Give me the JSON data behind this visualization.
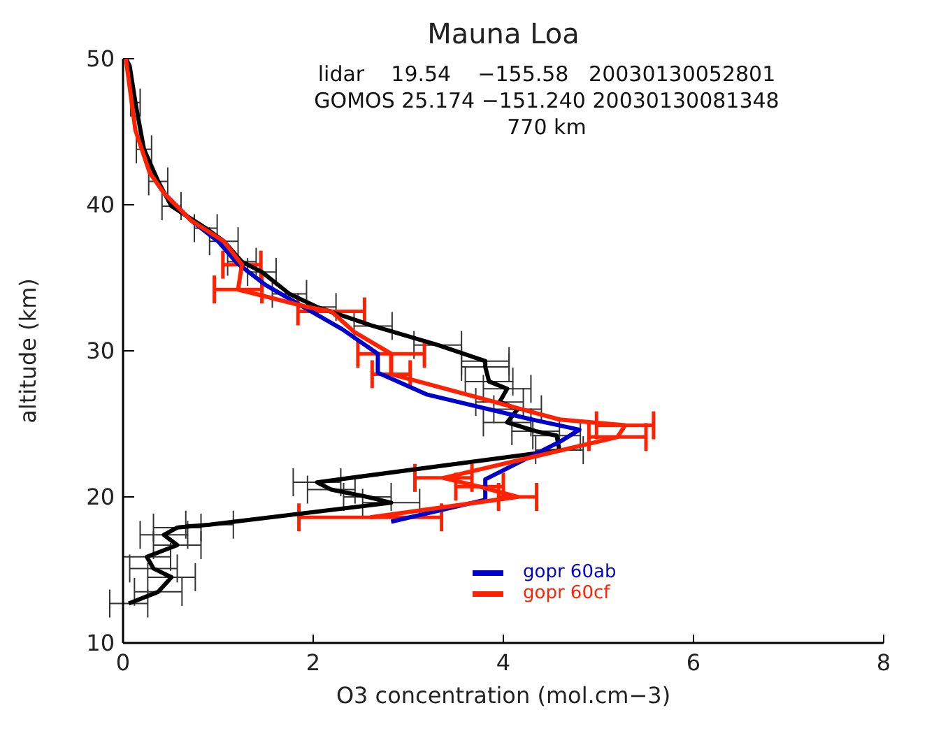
{
  "chart_data": {
    "type": "line",
    "title": "Mauna Loa",
    "xlabel": "O3 concentration (mol.cm−3)",
    "ylabel": "altitude (km)",
    "annotations": [
      "lidar    19.54    −155.58   20030130052801",
      "GOMOS 25.174 −151.240 20030130081348",
      "770 km"
    ],
    "xlim": [
      0,
      8
    ],
    "xticks": [
      0,
      2,
      4,
      6,
      8
    ],
    "ylim": [
      10,
      50
    ],
    "yticks": [
      10,
      20,
      30,
      40,
      50
    ],
    "grid": false,
    "legend": "bottom",
    "marker": "none",
    "line_style": "solid",
    "series": [
      {
        "color": "#000000",
        "x": [
          0.03,
          0.07,
          0.13,
          0.22,
          0.37,
          0.51,
          0.87,
          1.06,
          1.25,
          1.46,
          1.75,
          2.04,
          2.63,
          3.31,
          3.81,
          3.81,
          3.85,
          4.04,
          3.96,
          4.15,
          4.04,
          4.34,
          4.56,
          4.59,
          2.04,
          2.19,
          2.57,
          2.82,
          0.91,
          0.57,
          0.43,
          0.57,
          0.25,
          0.32,
          0.51,
          0.37,
          0.06
        ],
        "values": [
          50,
          49.5,
          47,
          43.8,
          41.6,
          39.9,
          38.4,
          37.5,
          36.1,
          35.4,
          33.9,
          33,
          31.7,
          30.4,
          29.3,
          28.9,
          27.9,
          27.4,
          26.5,
          26,
          25.1,
          24.5,
          24.2,
          23.2,
          21,
          20.5,
          20,
          19.6,
          18.1,
          17.9,
          17.4,
          16.7,
          15.9,
          15.1,
          14.5,
          13.5,
          12.7
        ],
        "xerrors": [
          null,
          null,
          0.05,
          0.08,
          0.1,
          0.1,
          0.12,
          0.15,
          0.15,
          0.15,
          0.18,
          0.2,
          0.2,
          0.25,
          0.25,
          0.25,
          0.25,
          0.25,
          0.25,
          0.25,
          0.25,
          0.25,
          0.25,
          0.25,
          0.25,
          0.25,
          0.25,
          0.3,
          0.25,
          0.25,
          0.25,
          0.25,
          0.25,
          0.25,
          0.25,
          0.25,
          0.2
        ]
      },
      {
        "name": "gopr 60ab",
        "color": "#0000cc",
        "x": [
          0.43,
          0.72,
          1.0,
          1.2,
          1.5,
          1.9,
          2.3,
          2.68,
          2.68,
          3.2,
          4.3,
          4.8,
          4.6,
          3.81,
          3.81,
          2.82
        ],
        "values": [
          40.8,
          38.9,
          37.5,
          36,
          34.5,
          33,
          31.5,
          29.8,
          28.5,
          27,
          25.3,
          24.6,
          23.8,
          21.2,
          19.8,
          18.3
        ]
      },
      {
        "name": "gopr 60cf",
        "color": "#ff2200",
        "x": [
          0.03,
          0.13,
          0.28,
          0.43,
          0.72,
          1.06,
          1.25,
          1.21,
          1.94,
          2.19,
          2.43,
          2.82,
          2.82,
          4.59,
          5.28,
          5.2,
          3.37,
          3.75,
          4.15,
          2.6
        ],
        "values": [
          50,
          45.1,
          42.2,
          40.8,
          38.9,
          37.5,
          35.9,
          34.2,
          33,
          32.7,
          31.3,
          29.8,
          28.4,
          25.3,
          24.9,
          24.1,
          21.3,
          20.7,
          20,
          18.6
        ],
        "xerrors": [
          null,
          null,
          null,
          null,
          null,
          null,
          0.2,
          0.25,
          null,
          0.35,
          null,
          0.35,
          0.2,
          null,
          0.3,
          0.3,
          0.3,
          0.25,
          0.2,
          0.75
        ]
      }
    ]
  }
}
